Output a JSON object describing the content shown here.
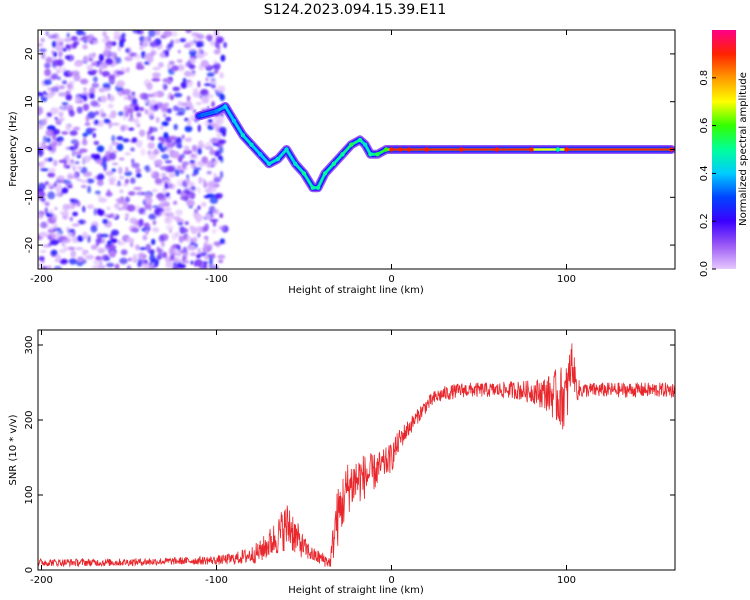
{
  "figure_title": "S124.2023.094.15.39.E11",
  "chart_data": [
    {
      "type": "heatmap",
      "title": "S124.2023.094.15.39.E11",
      "xlabel": "Height of straight line (km)",
      "ylabel": "Frequency (Hz)",
      "xlim": [
        -202,
        162
      ],
      "ylim": [
        -25,
        25
      ],
      "x_ticks": [
        -200,
        -100,
        0,
        100
      ],
      "y_ticks": [
        -20,
        -10,
        0,
        10,
        20
      ],
      "grid": false,
      "colorbar": {
        "label": "Normalized spectral amplitude",
        "range": [
          0.0,
          1.0
        ],
        "ticks": [
          0.0,
          0.2,
          0.4,
          0.6,
          0.8
        ],
        "tick_labels": [
          "0.0",
          "0.2",
          "0.4",
          "0.6",
          "0.8"
        ],
        "colormap": [
          "#e6c8ff",
          "#9b59f5",
          "#3a00ff",
          "#0044ff",
          "#00ccff",
          "#00ff99",
          "#33ff00",
          "#ffff00",
          "#ff9900",
          "#ff2200",
          "#ff0088"
        ]
      },
      "ridge_frequency_trace": {
        "x": [
          -110,
          -100,
          -95,
          -90,
          -85,
          -80,
          -75,
          -70,
          -65,
          -60,
          -55,
          -50,
          -45,
          -42,
          -38,
          -33,
          -28,
          -23,
          -18,
          -15,
          -12,
          -8,
          -3,
          0,
          5,
          10,
          20,
          40,
          60,
          80,
          95,
          100,
          160
        ],
        "y": [
          7,
          8,
          9,
          6,
          3,
          1,
          -1,
          -3,
          -2,
          0,
          -3,
          -5,
          -8,
          -8,
          -5,
          -3,
          -1,
          1,
          2,
          1,
          -1,
          -1,
          0,
          0,
          0,
          0,
          0,
          0,
          0,
          0,
          0,
          0,
          0
        ],
        "amplitude": [
          0.3,
          0.35,
          0.4,
          0.4,
          0.45,
          0.45,
          0.4,
          0.45,
          0.45,
          0.45,
          0.45,
          0.5,
          0.5,
          0.5,
          0.5,
          0.5,
          0.5,
          0.55,
          0.5,
          0.45,
          0.5,
          0.55,
          0.6,
          0.9,
          0.9,
          0.9,
          0.9,
          0.9,
          0.9,
          0.9,
          0.5,
          0.9,
          0.9
        ]
      },
      "noise_region_x": [
        -202,
        -95
      ]
    },
    {
      "type": "line",
      "xlabel": "Height of straight line (km)",
      "ylabel": "SNR (10 * v/v)",
      "xlim": [
        -202,
        162
      ],
      "ylim": [
        0,
        320
      ],
      "x_ticks": [
        -200,
        -100,
        0,
        100
      ],
      "y_ticks": [
        0,
        100,
        200,
        300
      ],
      "grid": false,
      "series": [
        {
          "name": "SNR",
          "color": "#e8262b",
          "x": [
            -202,
            -180,
            -160,
            -140,
            -120,
            -100,
            -90,
            -80,
            -75,
            -70,
            -65,
            -62,
            -58,
            -55,
            -50,
            -45,
            -40,
            -35,
            -32,
            -28,
            -25,
            -20,
            -15,
            -10,
            -5,
            0,
            5,
            10,
            15,
            20,
            25,
            30,
            40,
            50,
            60,
            70,
            80,
            90,
            95,
            100,
            103,
            106,
            110,
            120,
            130,
            140,
            150,
            162
          ],
          "y": [
            10,
            10,
            10,
            11,
            12,
            13,
            15,
            20,
            25,
            35,
            45,
            55,
            60,
            45,
            30,
            20,
            15,
            10,
            60,
            90,
            110,
            120,
            125,
            130,
            140,
            150,
            175,
            190,
            205,
            220,
            230,
            235,
            240,
            240,
            240,
            240,
            238,
            235,
            230,
            230,
            280,
            240,
            240,
            240,
            240,
            240,
            240,
            240
          ],
          "noise_amp": [
            5,
            5,
            5,
            5,
            5,
            6,
            8,
            12,
            15,
            20,
            25,
            30,
            35,
            25,
            15,
            10,
            10,
            8,
            40,
            40,
            35,
            35,
            30,
            25,
            20,
            20,
            15,
            12,
            10,
            10,
            10,
            10,
            10,
            10,
            10,
            12,
            15,
            25,
            40,
            45,
            30,
            15,
            10,
            10,
            10,
            10,
            10,
            10
          ]
        }
      ]
    }
  ]
}
